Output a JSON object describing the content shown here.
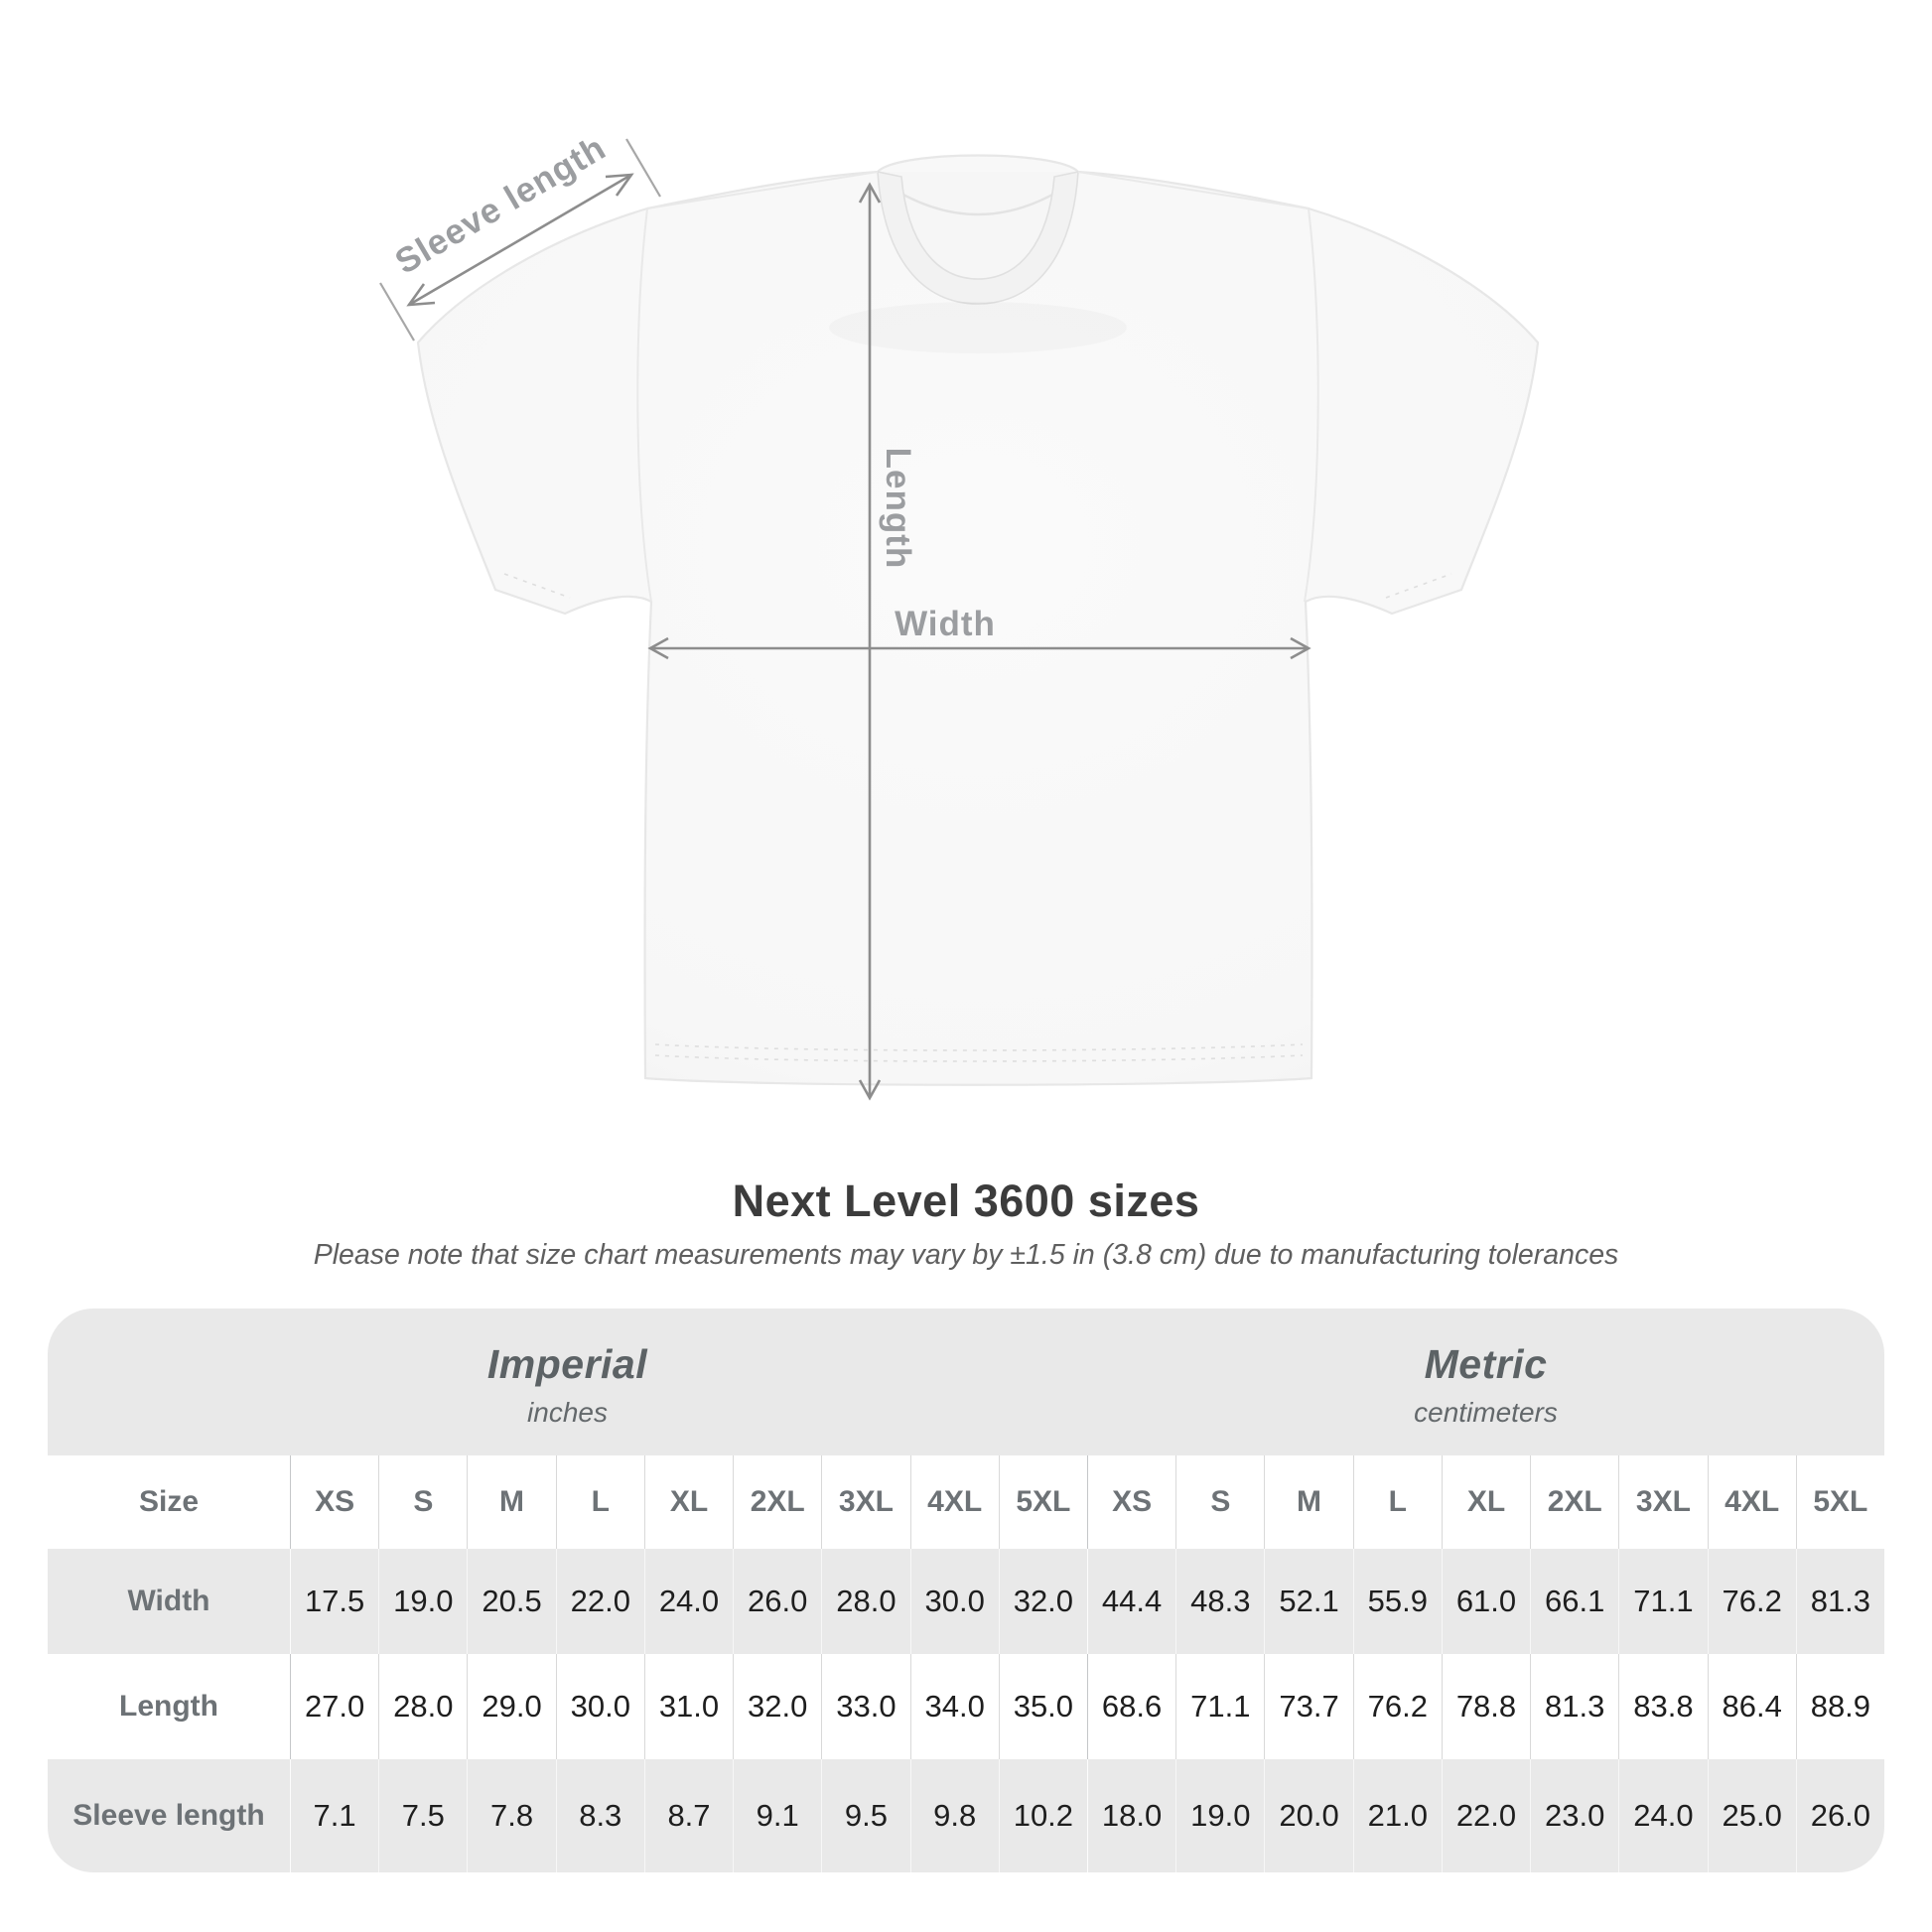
{
  "diagram": {
    "labels": {
      "sleeve": "Sleeve length",
      "length": "Length",
      "width": "Width"
    }
  },
  "title": "Next Level 3600 sizes",
  "subtitle": "Please note that size chart measurements may vary by ±1.5 in (3.8 cm) due to manufacturing tolerances",
  "table": {
    "unit_groups": [
      {
        "name": "Imperial",
        "unit": "inches"
      },
      {
        "name": "Metric",
        "unit": "centimeters"
      }
    ],
    "corner_label": "Size",
    "size_headers": [
      "XS",
      "S",
      "M",
      "L",
      "XL",
      "2XL",
      "3XL",
      "4XL",
      "5XL",
      "XS",
      "S",
      "M",
      "L",
      "XL",
      "2XL",
      "3XL",
      "4XL",
      "5XL"
    ],
    "rows": [
      {
        "label": "Width",
        "values": [
          "17.5",
          "19.0",
          "20.5",
          "22.0",
          "24.0",
          "26.0",
          "28.0",
          "30.0",
          "32.0",
          "44.4",
          "48.3",
          "52.1",
          "55.9",
          "61.0",
          "66.1",
          "71.1",
          "76.2",
          "81.3"
        ]
      },
      {
        "label": "Length",
        "values": [
          "27.0",
          "28.0",
          "29.0",
          "30.0",
          "31.0",
          "32.0",
          "33.0",
          "34.0",
          "35.0",
          "68.6",
          "71.1",
          "73.7",
          "76.2",
          "78.8",
          "81.3",
          "83.8",
          "86.4",
          "88.9"
        ]
      },
      {
        "label": "Sleeve length",
        "values": [
          "7.1",
          "7.5",
          "7.8",
          "8.3",
          "8.7",
          "9.1",
          "9.5",
          "9.8",
          "10.2",
          "18.0",
          "19.0",
          "20.0",
          "21.0",
          "22.0",
          "23.0",
          "24.0",
          "25.0",
          "26.0"
        ]
      }
    ]
  },
  "colors": {
    "page_bg": "#ffffff",
    "panel_gray": "#e9e9e9",
    "divider_light": "#d9d9d9",
    "divider_strong": "#c5c7c9",
    "divider_on_gray": "#f7f7f7",
    "heading_text": "#3c3c3c",
    "subtitle_text": "#5f5f5f",
    "table_label_text": "#6d7276",
    "table_value_text": "#1e1e1e",
    "band_header_text": "#5c6265",
    "annotation_line": "#8d8d8d",
    "annotation_text": "#9b9da0",
    "shirt_fill": "#f8f8f8",
    "shirt_edge": "#e7e7e7"
  }
}
